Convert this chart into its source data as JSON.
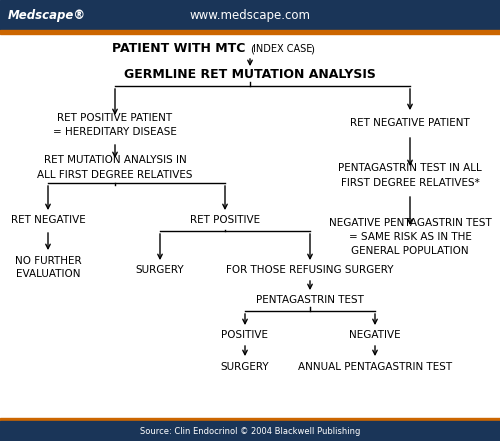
{
  "bg_color": "#ffffff",
  "header_bg": "#1a3558",
  "header_accent": "#cc6600",
  "header_text_color": "#ffffff",
  "medscape_text": "Medscape®",
  "website_text": "www.medscape.com",
  "footer_text": "Source: Clin Endocrinol © 2004 Blackwell Publishing",
  "text_color": "#000000",
  "arrow_color": "#000000",
  "line_color": "#000000"
}
